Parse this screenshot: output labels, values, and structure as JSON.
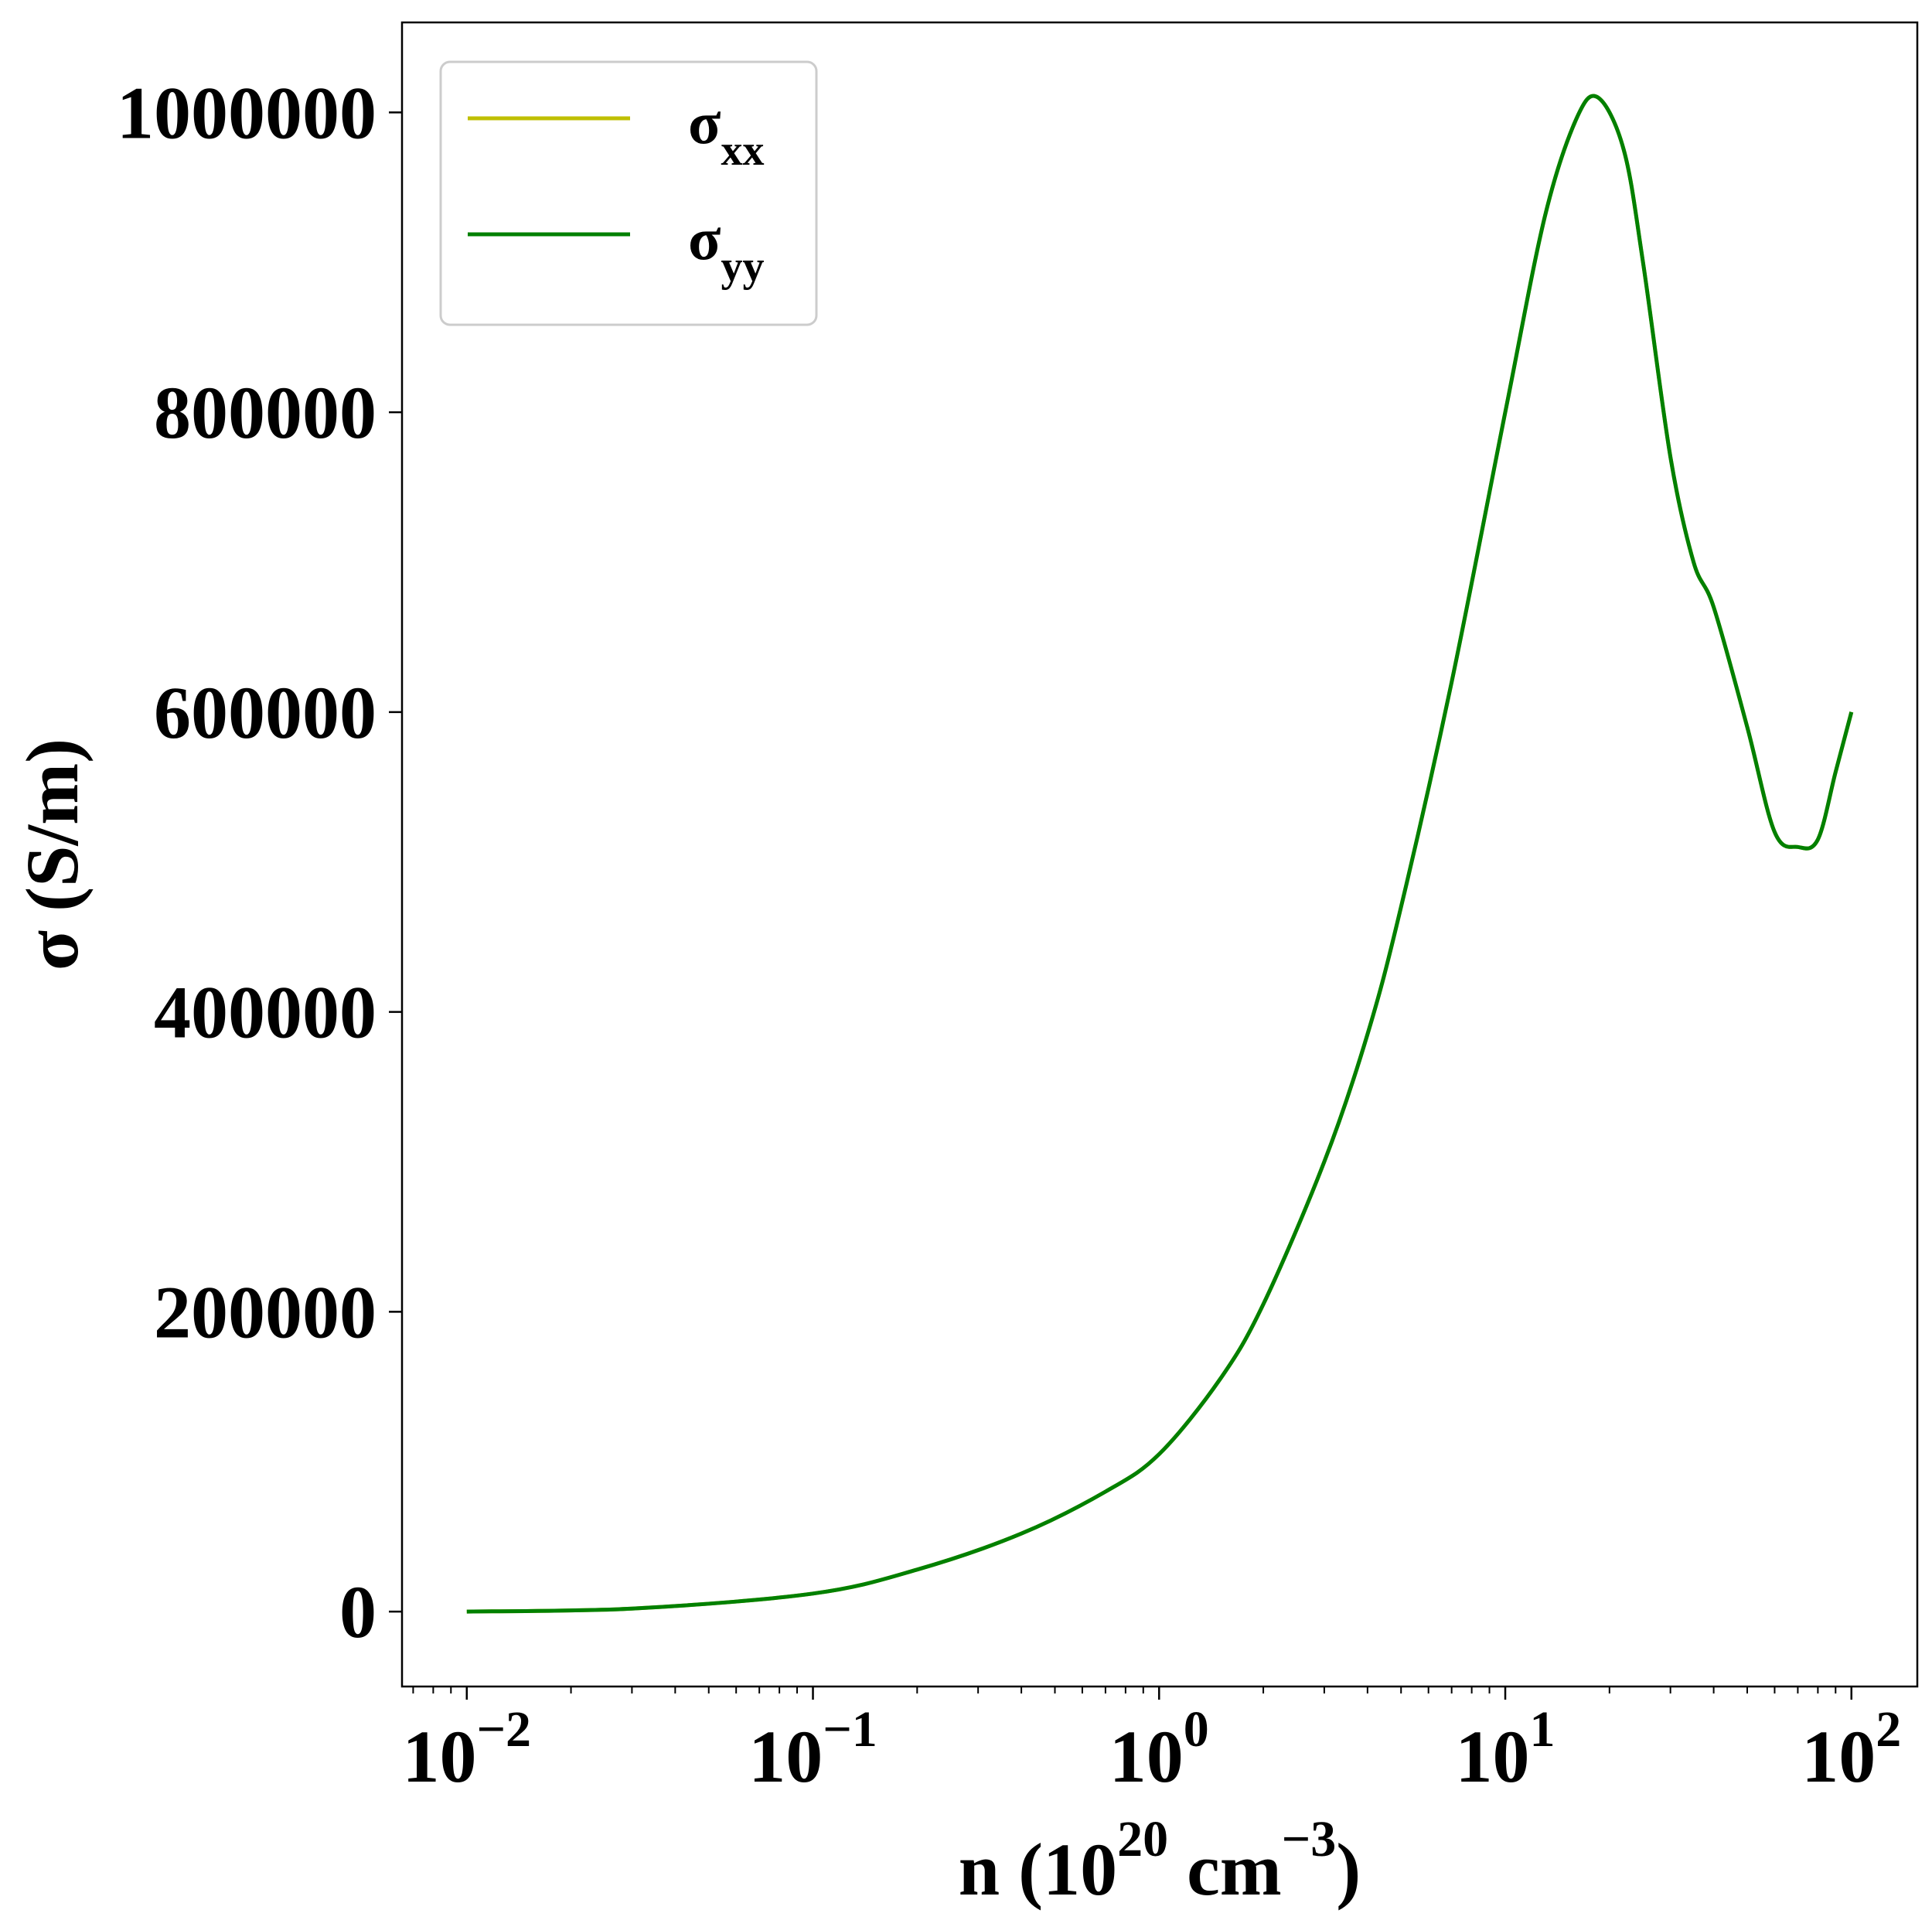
{
  "chart_data": {
    "type": "line",
    "title": "",
    "xlabel": {
      "base": "n (10",
      "sup1": "20",
      "mid": " cm",
      "sup2": "−3",
      "end": ")"
    },
    "ylabel": "σ (S/m)",
    "xscale": "log",
    "xlim": [
      0.0065,
      155
    ],
    "ylim": [
      -50000,
      1060000
    ],
    "xticks": [
      {
        "value": 0.01,
        "base": "10",
        "exp": "−2"
      },
      {
        "value": 0.1,
        "base": "10",
        "exp": "−1"
      },
      {
        "value": 1,
        "base": "10",
        "exp": "0"
      },
      {
        "value": 10,
        "base": "10",
        "exp": "1"
      },
      {
        "value": 100,
        "base": "10",
        "exp": "2"
      }
    ],
    "yticks": [
      {
        "value": 0,
        "label": "0"
      },
      {
        "value": 200000,
        "label": "200000"
      },
      {
        "value": 400000,
        "label": "400000"
      },
      {
        "value": 600000,
        "label": "600000"
      },
      {
        "value": 800000,
        "label": "800000"
      },
      {
        "value": 1000000,
        "label": "1000000"
      }
    ],
    "legend": {
      "placement": "upper-left",
      "entries": [
        {
          "main": "σ",
          "sub": "xx",
          "color": "#bfbf00"
        },
        {
          "main": "σ",
          "sub": "yy",
          "color": "#008000"
        }
      ]
    },
    "series": [
      {
        "name": "σxx",
        "color": "#bfbf00",
        "x": [
          0.01,
          0.03,
          0.1,
          0.2,
          0.4,
          0.7,
          1,
          1.5,
          2,
          3,
          4,
          5,
          7,
          10,
          13,
          16,
          18.5,
          22,
          25,
          30,
          35,
          40,
          50,
          60,
          70,
          80,
          90,
          100
        ],
        "y": [
          0,
          2000,
          12000,
          28000,
          52000,
          80000,
          105000,
          155000,
          205000,
          300000,
          385000,
          470000,
          620000,
          800000,
          930000,
          995000,
          1010000,
          975000,
          900000,
          770000,
          700000,
          670000,
          590000,
          520000,
          510000,
          515000,
          560000,
          600000
        ]
      },
      {
        "name": "σyy",
        "color": "#008000",
        "x": [
          0.01,
          0.03,
          0.1,
          0.2,
          0.4,
          0.7,
          1,
          1.5,
          2,
          3,
          4,
          5,
          7,
          10,
          13,
          16,
          18.5,
          22,
          25,
          30,
          35,
          40,
          50,
          60,
          70,
          80,
          90,
          100
        ],
        "y": [
          0,
          2000,
          12000,
          28000,
          52000,
          80000,
          105000,
          155000,
          205000,
          300000,
          385000,
          470000,
          620000,
          800000,
          930000,
          995000,
          1010000,
          975000,
          900000,
          770000,
          700000,
          670000,
          590000,
          520000,
          510000,
          515000,
          560000,
          600000
        ]
      }
    ]
  }
}
